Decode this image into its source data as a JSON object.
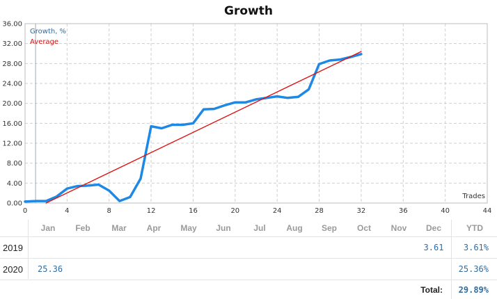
{
  "chart_data": {
    "type": "line",
    "title": "Growth",
    "xlabel": "Trades",
    "xlim": [
      0,
      44
    ],
    "ylim": [
      0,
      36
    ],
    "xticks": [
      0,
      4,
      8,
      12,
      16,
      20,
      24,
      28,
      32,
      36,
      40,
      44
    ],
    "yticks": [
      "0.00",
      "4.00",
      "8.00",
      "12.00",
      "16.00",
      "20.00",
      "24.00",
      "28.00",
      "32.00",
      "36.00"
    ],
    "grid": true,
    "legend_position": "top-left",
    "series": [
      {
        "name": "Growth, %",
        "color": "#1e88e5",
        "x": [
          0,
          1,
          2,
          3,
          4,
          5,
          6,
          7,
          8,
          9,
          10,
          11,
          12,
          13,
          14,
          15,
          16,
          17,
          18,
          19,
          20,
          21,
          22,
          23,
          24,
          25,
          26,
          27,
          28,
          29,
          30,
          31,
          32
        ],
        "values": [
          0.3,
          0.4,
          0.4,
          1.3,
          2.9,
          3.4,
          3.5,
          3.7,
          2.5,
          0.4,
          1.2,
          4.9,
          15.4,
          15.0,
          15.7,
          15.7,
          16.0,
          18.8,
          18.9,
          19.6,
          20.2,
          20.2,
          20.8,
          21.1,
          21.4,
          21.1,
          21.3,
          22.8,
          27.9,
          28.6,
          28.8,
          29.3,
          29.89
        ]
      },
      {
        "name": "Average",
        "color": "#dd1111",
        "x": [
          2,
          32
        ],
        "values": [
          0.0,
          30.4
        ]
      }
    ]
  },
  "table": {
    "months": [
      "Jan",
      "Feb",
      "Mar",
      "Apr",
      "May",
      "Jun",
      "Jul",
      "Aug",
      "Sep",
      "Oct",
      "Nov",
      "Dec"
    ],
    "ytd_label": "YTD",
    "rows": [
      {
        "year": "2019",
        "values": [
          "",
          "",
          "",
          "",
          "",
          "",
          "",
          "",
          "",
          "",
          "",
          "3.61"
        ],
        "ytd": "3.61%"
      },
      {
        "year": "2020",
        "values": [
          "25.36",
          "",
          "",
          "",
          "",
          "",
          "",
          "",
          "",
          "",
          "",
          ""
        ],
        "ytd": "25.36%"
      }
    ],
    "total_label": "Total:",
    "total_value": "29.89%"
  }
}
